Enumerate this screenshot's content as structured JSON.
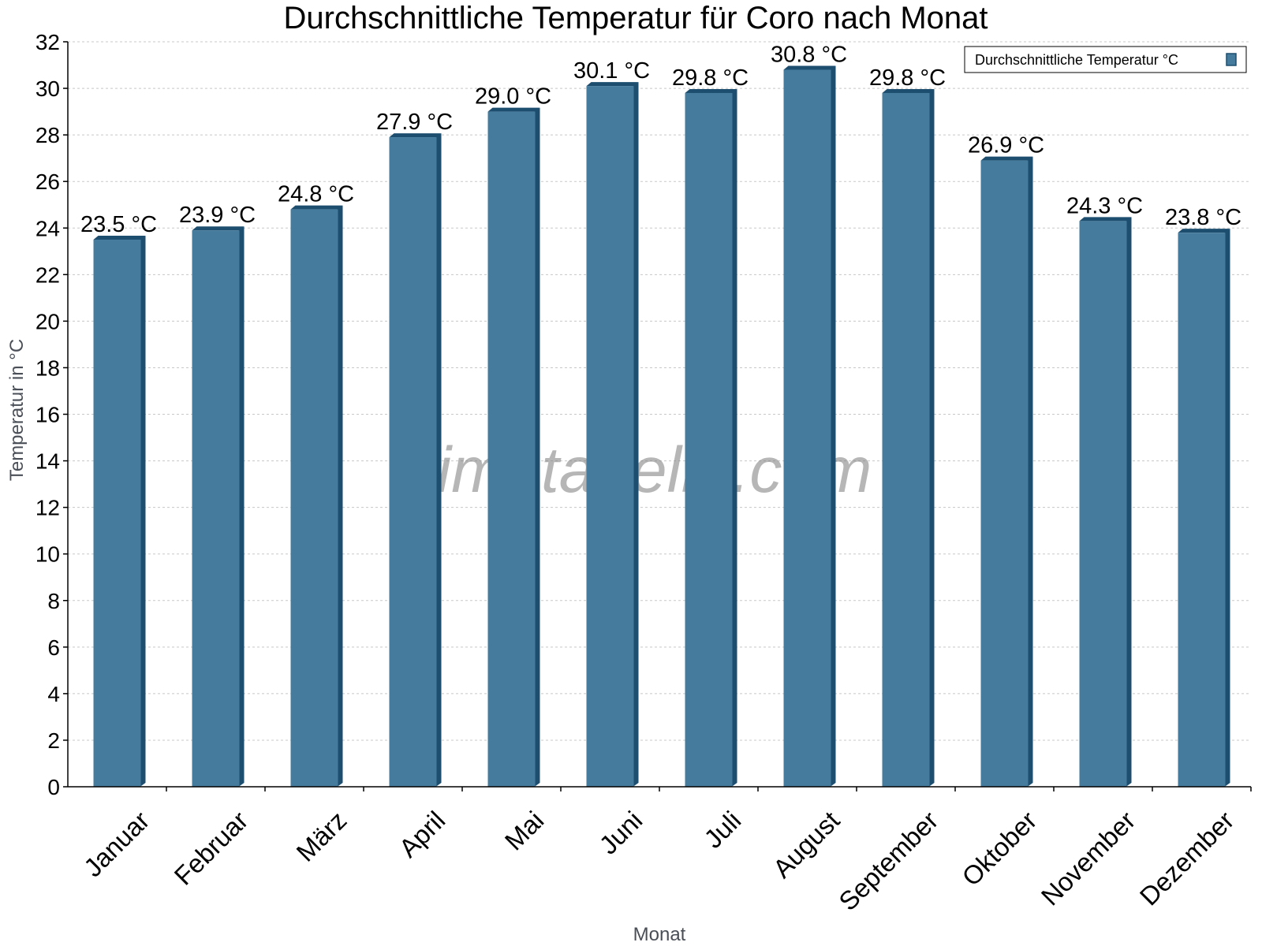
{
  "chart_data": {
    "type": "bar",
    "title": "Durchschnittliche Temperatur für Coro nach Monat",
    "xlabel": "Monat",
    "ylabel": "Temperatur in °C",
    "categories": [
      "Januar",
      "Februar",
      "März",
      "April",
      "Mai",
      "Juni",
      "Juli",
      "August",
      "September",
      "Oktober",
      "November",
      "Dezember"
    ],
    "series": [
      {
        "name": "Durchschnittliche Temperatur °C",
        "values": [
          23.5,
          23.9,
          24.8,
          27.9,
          29.0,
          30.1,
          29.8,
          30.8,
          29.8,
          26.9,
          24.3,
          23.8
        ],
        "labels": [
          "23.5 °C",
          "23.9 °C",
          "24.8 °C",
          "27.9 °C",
          "29.0 °C",
          "30.1 °C",
          "29.8 °C",
          "30.8 °C",
          "29.8 °C",
          "26.9 °C",
          "24.3 °C",
          "23.8 °C"
        ]
      }
    ],
    "ylim": [
      0,
      32
    ],
    "yticks": [
      0,
      2,
      4,
      6,
      8,
      10,
      12,
      14,
      16,
      18,
      20,
      22,
      24,
      26,
      28,
      30,
      32
    ],
    "grid": true,
    "legend_position": "top-right",
    "colors": {
      "bar": "#457b9d",
      "bar_edge": "#1d4e6f",
      "grid": "#c8c8c8",
      "axis": "#000000"
    },
    "watermark": "klimatabelle.com"
  }
}
